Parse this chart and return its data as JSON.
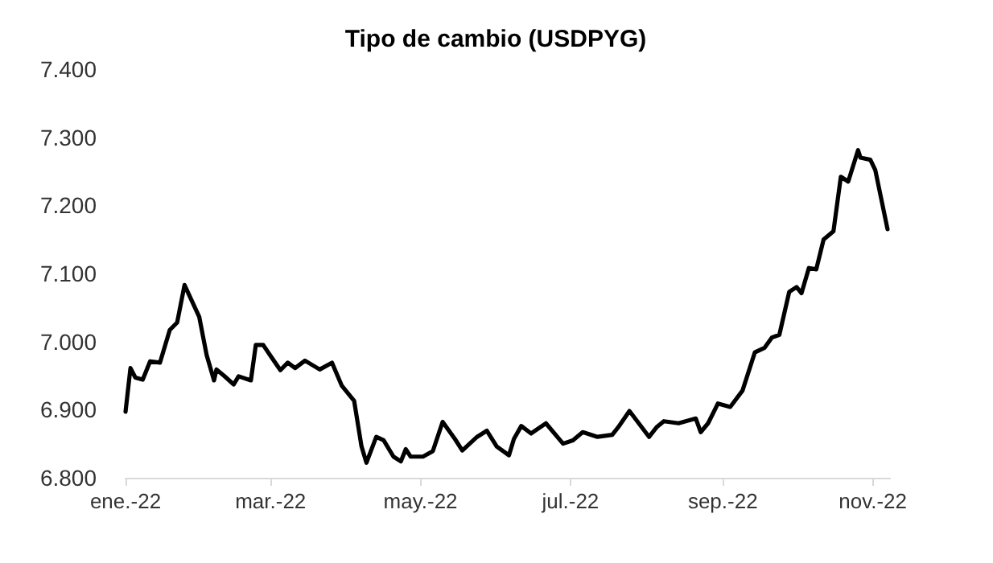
{
  "chart_data": {
    "type": "line",
    "title": "Tipo de cambio (USDPYG)",
    "x": [
      "2022-01-01",
      "2022-01-03",
      "2022-01-05",
      "2022-01-08",
      "2022-01-11",
      "2022-01-15",
      "2022-01-19",
      "2022-01-22",
      "2022-01-25",
      "2022-01-31",
      "2022-02-03",
      "2022-02-06",
      "2022-02-07",
      "2022-02-10",
      "2022-02-14",
      "2022-02-16",
      "2022-02-21",
      "2022-02-23",
      "2022-02-26",
      "2022-03-01",
      "2022-03-05",
      "2022-03-08",
      "2022-03-11",
      "2022-03-15",
      "2022-03-21",
      "2022-03-26",
      "2022-03-30",
      "2022-04-04",
      "2022-04-07",
      "2022-04-09",
      "2022-04-13",
      "2022-04-16",
      "2022-04-20",
      "2022-04-23",
      "2022-04-25",
      "2022-04-27",
      "2022-05-02",
      "2022-05-06",
      "2022-05-10",
      "2022-05-15",
      "2022-05-18",
      "2022-05-24",
      "2022-05-28",
      "2022-06-01",
      "2022-06-06",
      "2022-06-08",
      "2022-06-11",
      "2022-06-15",
      "2022-06-21",
      "2022-06-28",
      "2022-07-02",
      "2022-07-06",
      "2022-07-12",
      "2022-07-18",
      "2022-07-21",
      "2022-07-25",
      "2022-08-02",
      "2022-08-05",
      "2022-08-08",
      "2022-08-14",
      "2022-08-21",
      "2022-08-23",
      "2022-08-26",
      "2022-08-30",
      "2022-09-04",
      "2022-09-09",
      "2022-09-14",
      "2022-09-18",
      "2022-09-21",
      "2022-09-24",
      "2022-09-28",
      "2022-10-01",
      "2022-10-03",
      "2022-10-06",
      "2022-10-09",
      "2022-10-12",
      "2022-10-16",
      "2022-10-19",
      "2022-10-22",
      "2022-10-26",
      "2022-10-27",
      "2022-10-31",
      "2022-11-02",
      "2022-11-07"
    ],
    "series": [
      {
        "color": "#000000",
        "values": [
          6.897,
          6.961,
          6.947,
          6.944,
          6.971,
          6.969,
          7.017,
          7.028,
          7.083,
          7.036,
          6.98,
          6.943,
          6.959,
          6.95,
          6.937,
          6.949,
          6.943,
          6.995,
          6.995,
          6.979,
          6.958,
          6.969,
          6.961,
          6.972,
          6.959,
          6.969,
          6.935,
          6.913,
          6.846,
          6.822,
          6.86,
          6.855,
          6.831,
          6.824,
          6.842,
          6.831,
          6.831,
          6.839,
          6.882,
          6.857,
          6.84,
          6.86,
          6.869,
          6.846,
          6.833,
          6.857,
          6.876,
          6.865,
          6.88,
          6.85,
          6.855,
          6.867,
          6.86,
          6.863,
          6.877,
          6.898,
          6.86,
          6.874,
          6.883,
          6.88,
          6.887,
          6.867,
          6.88,
          6.909,
          6.904,
          6.928,
          6.984,
          6.991,
          7.006,
          7.01,
          7.073,
          7.08,
          7.071,
          7.108,
          7.106,
          7.15,
          7.162,
          7.242,
          7.235,
          7.281,
          7.27,
          7.267,
          7.252,
          7.165
        ]
      }
    ],
    "xlim": [
      "2022-01-01",
      "2022-11-08"
    ],
    "xticks": [
      {
        "value": "2022-01-01",
        "label": "ene.-22"
      },
      {
        "value": "2022-03-01",
        "label": "mar.-22"
      },
      {
        "value": "2022-05-01",
        "label": "may.-22"
      },
      {
        "value": "2022-07-01",
        "label": "jul.-22"
      },
      {
        "value": "2022-09-01",
        "label": "sep.-22"
      },
      {
        "value": "2022-11-01",
        "label": "nov.-22"
      }
    ],
    "ylim": [
      6.8,
      7.4
    ],
    "yticks": [
      {
        "value": 6.8,
        "label": "6.800"
      },
      {
        "value": 6.9,
        "label": "6.900"
      },
      {
        "value": 7.0,
        "label": "7.000"
      },
      {
        "value": 7.1,
        "label": "7.100"
      },
      {
        "value": 7.2,
        "label": "7.200"
      },
      {
        "value": 7.3,
        "label": "7.300"
      },
      {
        "value": 7.4,
        "label": "7.400"
      }
    ],
    "grid": false,
    "marker": "none",
    "line_style": "solid"
  }
}
